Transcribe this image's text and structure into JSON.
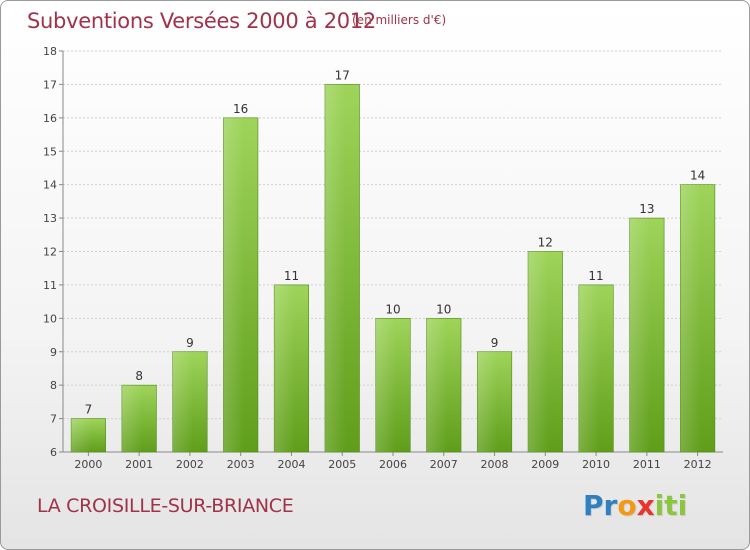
{
  "title": "Subventions Versées 2000 à 2012",
  "subtitle": "(en milliers d'€)",
  "commune": "LA CROISILLE-SUR-BRIANCE",
  "logo": {
    "letters": [
      {
        "ch": "P",
        "color": "#2f7fc1"
      },
      {
        "ch": "r",
        "color": "#2f7fc1"
      },
      {
        "ch": "o",
        "color": "#f29a18"
      },
      {
        "ch": "x",
        "color": "#e8342d"
      },
      {
        "ch": "i",
        "color": "#8cc63f"
      },
      {
        "ch": "t",
        "color": "#8cc63f"
      },
      {
        "ch": "i",
        "color": "#8cc63f"
      }
    ]
  },
  "colors": {
    "title": "#a0324a",
    "bar_top": "#9ed45a",
    "bar_bottom": "#5f9e1a",
    "grid": "#d0d0d0"
  },
  "chart_data": {
    "type": "bar",
    "title": "Subventions Versées 2000 à 2012",
    "subtitle": "(en milliers d'€)",
    "categories": [
      "2000",
      "2001",
      "2002",
      "2003",
      "2004",
      "2005",
      "2006",
      "2007",
      "2008",
      "2009",
      "2010",
      "2011",
      "2012"
    ],
    "values": [
      7,
      8,
      9,
      16,
      11,
      17,
      10,
      10,
      9,
      12,
      11,
      13,
      14
    ],
    "ylim": [
      6,
      18
    ],
    "yticks": [
      6,
      7,
      8,
      9,
      10,
      11,
      12,
      13,
      14,
      15,
      16,
      17,
      18
    ],
    "grid": true,
    "data_labels": true,
    "legend": "none"
  }
}
